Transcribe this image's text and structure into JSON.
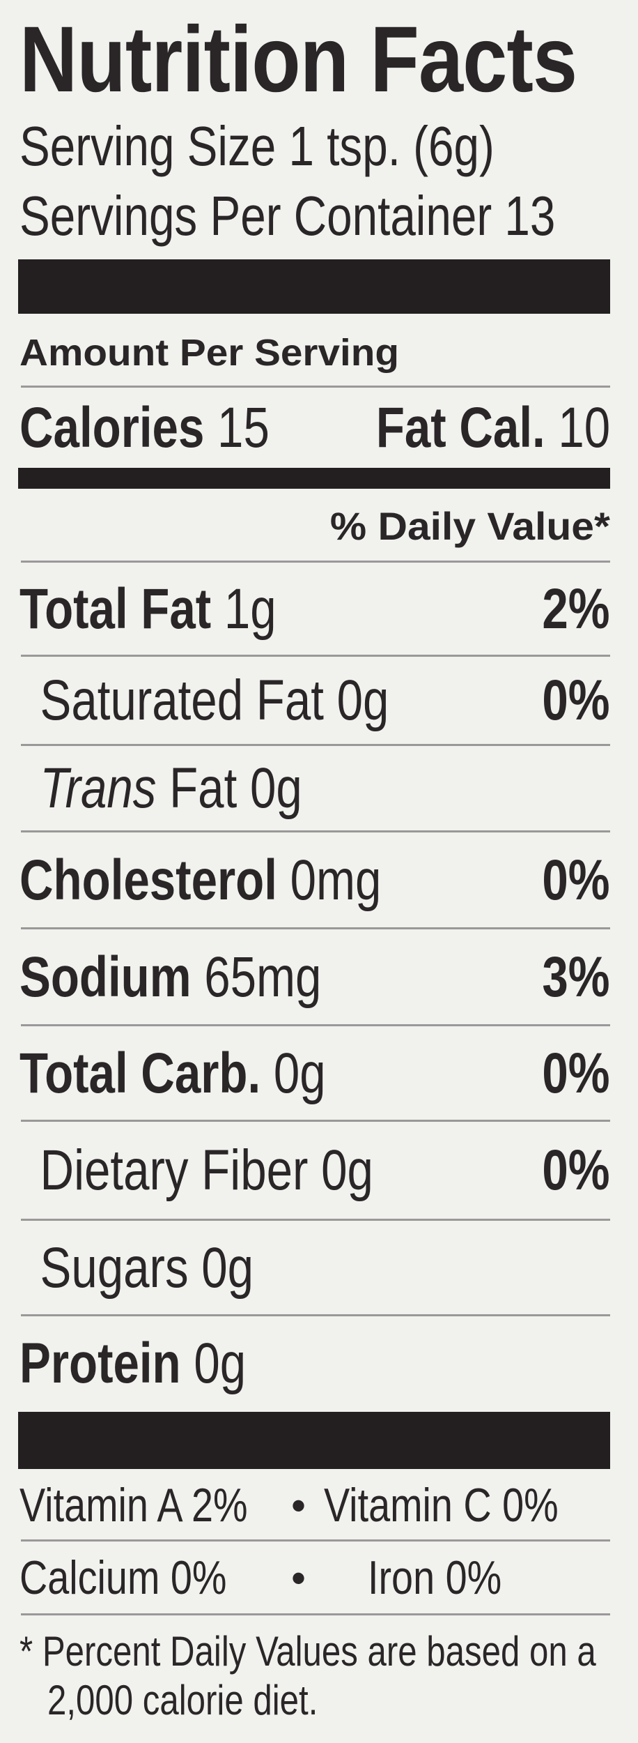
{
  "title": "Nutrition Facts",
  "serving_size": "Serving Size 1 tsp. (6g)",
  "servings_per_container": "Servings Per Container 13",
  "amount_per_serving": "Amount Per Serving",
  "calories": {
    "label": "Calories",
    "value": "15",
    "fat_label": "Fat Cal.",
    "fat_value": "10"
  },
  "daily_value_header": "% Daily Value*",
  "nutrients": [
    {
      "label": "Total Fat",
      "amount": "1g",
      "dv": "2%"
    },
    {
      "label": "Saturated Fat",
      "amount": "0g",
      "dv": "0%"
    },
    {
      "label": "Trans",
      "amount": "Fat 0g",
      "dv": ""
    },
    {
      "label": "Cholesterol",
      "amount": "0mg",
      "dv": "0%"
    },
    {
      "label": "Sodium",
      "amount": "65mg",
      "dv": "3%"
    },
    {
      "label": "Total Carb.",
      "amount": "0g",
      "dv": "0%"
    },
    {
      "label": "Dietary Fiber",
      "amount": "0g",
      "dv": "0%"
    },
    {
      "label": "Sugars",
      "amount": "0g",
      "dv": ""
    },
    {
      "label": "Protein",
      "amount": "0g",
      "dv": ""
    }
  ],
  "vitamins": [
    {
      "left": "Vitamin A 2%",
      "bullet": "•",
      "right": "Vitamin C 0%"
    },
    {
      "left": "Calcium 0%",
      "bullet": "•",
      "right": "Iron 0%"
    }
  ],
  "footnote": [
    "* Percent Daily Values are based on a",
    "2,000 calorie diet."
  ]
}
